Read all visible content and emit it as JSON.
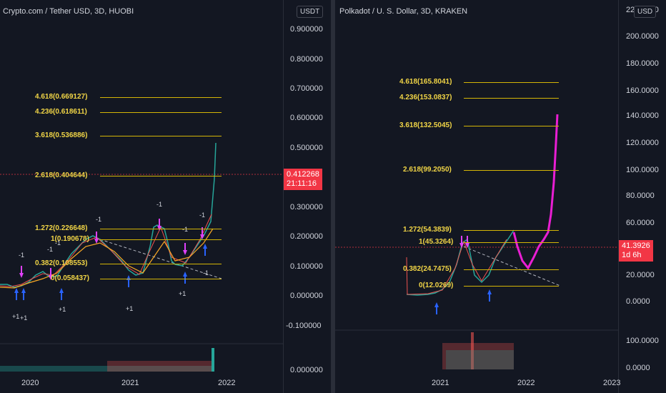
{
  "left_chart": {
    "title": "Crypto.com / Tether USD, 3D, HUOBI",
    "unit": "USDT",
    "ticks": [
      "0.900000",
      "0.800000",
      "0.700000",
      "0.600000",
      "0.500000",
      "0.400000",
      "0.300000",
      "0.200000",
      "0.100000",
      "0.000000",
      "-0.100000",
      "0.000000"
    ],
    "price_badge": "0.412268",
    "price_timer": "21:11:16",
    "fib_levels": [
      "4.618(0.669127)",
      "4.236(0.618611)",
      "3.618(0.536886)",
      "2.618(0.404644)",
      "1.272(0.226648)",
      "1(0.190678)",
      "0.382(0.108553)",
      "0(0.058437)"
    ],
    "x_ticks": [
      "2020",
      "2021",
      "2022"
    ],
    "annotations": [
      "-1",
      "-1",
      "-1",
      "-1",
      "-1",
      "-1",
      "-1",
      "+1",
      "+1",
      "+1",
      "+1",
      "+1",
      "-1"
    ],
    "colors": {
      "fib": "#d4b506",
      "badge": "#f23645",
      "arrow_up": "#2962ff",
      "arrow_down": "#e040fb"
    }
  },
  "right_chart": {
    "title": "Polkadot / U. S. Dollar, 3D, KRAKEN",
    "unit": "USD",
    "top_tick": "220.0000",
    "ticks": [
      "200.0000",
      "180.0000",
      "160.0000",
      "140.0000",
      "120.0000",
      "100.0000",
      "80.0000",
      "60.0000",
      "20.0000",
      "0.0000",
      "100.0000",
      "0.0000"
    ],
    "price_badge": "41.3926",
    "price_timer": "1d 6h",
    "fib_levels": [
      "4.618(165.8041)",
      "4.236(153.0837)",
      "3.618(132.5045)",
      "2.618(99.2050)",
      "1.272(54.3839)",
      "1(45.3264)",
      "0.382(24.7475)",
      "0(12.0269)"
    ],
    "x_ticks": [
      "2021",
      "2022",
      "2023"
    ]
  }
}
